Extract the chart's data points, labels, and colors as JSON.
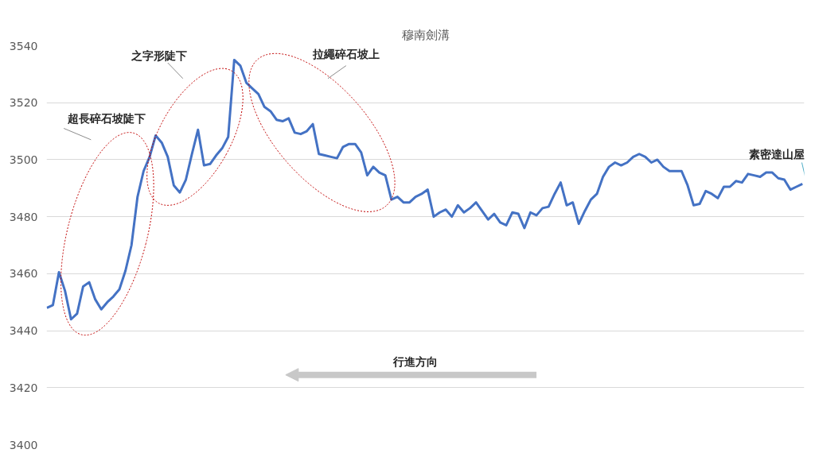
{
  "chart_data": {
    "type": "line",
    "title": "穆南劍溝",
    "categories": [
      null,
      null,
      null,
      null,
      null,
      null,
      null,
      null,
      null,
      null,
      null,
      null,
      null,
      null,
      null,
      null,
      null,
      null,
      null,
      null,
      null,
      null,
      null,
      null,
      null,
      null,
      null,
      null,
      null,
      null,
      null,
      null,
      null,
      null,
      null,
      null,
      null,
      null,
      null,
      null,
      null,
      null,
      null,
      null,
      null,
      null,
      null,
      null,
      null,
      null,
      null,
      null,
      null,
      null,
      null,
      null,
      null,
      null,
      null,
      null,
      null,
      null,
      null,
      null,
      null,
      null,
      null,
      null,
      null,
      null,
      null,
      null,
      null,
      null,
      null,
      null,
      null,
      null,
      null,
      null,
      null,
      null,
      null,
      null,
      null,
      null,
      null,
      null,
      null,
      null,
      null,
      null,
      null,
      null,
      null,
      null,
      null,
      null,
      null,
      null,
      null,
      null,
      null,
      null,
      null,
      null,
      null,
      null,
      null,
      null,
      null,
      null,
      null,
      null,
      null,
      null,
      null,
      null,
      null,
      null,
      null,
      null,
      null,
      null,
      null,
      null
    ],
    "series": [
      {
        "color": "#4472c4",
        "values": [
          3448,
          3449,
          3460.5,
          3454,
          3444,
          3446,
          3455.5,
          3457,
          3451,
          3447.5,
          3450,
          3452,
          3454.5,
          3461,
          3470,
          3487,
          3496,
          3501,
          3508.5,
          3506,
          3501,
          3491,
          3488.5,
          3493,
          3502,
          3510.5,
          3498,
          3498.5,
          3501.5,
          3504,
          3508,
          3535,
          3533,
          3527,
          3525,
          3523,
          3518.5,
          3517,
          3514,
          3513.5,
          3514.5,
          3509.5,
          3509,
          3510,
          3512.5,
          3502,
          3501.5,
          3501,
          3500.5,
          3504.5,
          3505.5,
          3505.5,
          3502.5,
          3494.5,
          3497.5,
          3495.5,
          3494.5,
          3486,
          3487,
          3485,
          3485,
          3487,
          3488,
          3489.5,
          3480,
          3481.5,
          3482.5,
          3480,
          3484,
          3481.5,
          3483,
          3485,
          3482,
          3479,
          3481,
          3478,
          3477,
          3481.5,
          3481,
          3476,
          3481.5,
          3480.5,
          3483,
          3483.5,
          3488,
          3492,
          3484,
          3485,
          3477.5,
          3482,
          3486,
          3488,
          3494,
          3497.5,
          3499,
          3498,
          3499,
          3501,
          3502,
          3501,
          3499,
          3500,
          3497.5,
          3496,
          3496,
          3496,
          3491,
          3484,
          3484.5,
          3489,
          3488,
          3486.5,
          3490.5,
          3490.5,
          3492.5,
          3492,
          3495,
          3494.5,
          3494,
          3495.5,
          3495.5,
          3493.5,
          3493,
          3489.5,
          3490.5,
          3491.5
        ]
      }
    ],
    "ylim": [
      3400,
      3540
    ],
    "yticks": [
      3400,
      3420,
      3440,
      3460,
      3480,
      3500,
      3520,
      3540
    ],
    "grid": "y",
    "tick_labels": "y",
    "marker": "none",
    "line_style": "solid",
    "annotations": [
      "超長碎石坡陡下",
      "之字形陡下",
      "拉繩碎石坡上",
      "素密達山屋",
      "行進方向"
    ]
  }
}
